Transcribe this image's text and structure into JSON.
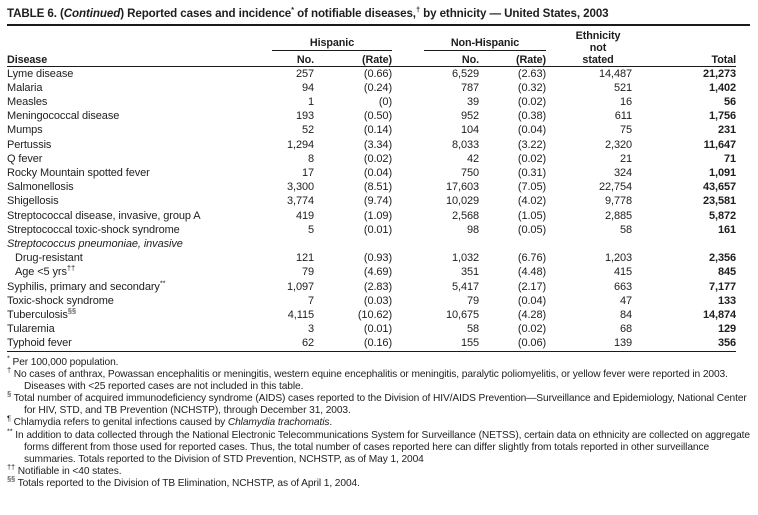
{
  "document": {
    "title": {
      "p1": "TABLE 6. (",
      "p2": "Continued",
      "p3": ") Reported cases and incidence",
      "sup1": "*",
      "p4": " of notifiable diseases,",
      "sup2": "†",
      "p5": " by ethnicity — United States, 2003"
    }
  },
  "table": {
    "headers": {
      "disease": "Disease",
      "hispanic_group": "Hispanic",
      "non_hispanic_group": "Non-Hispanic",
      "no": "No.",
      "rate": "(Rate)",
      "ethnicity_not_stated": "Ethnicity\nnot\nstated",
      "total": "Total"
    },
    "rows": [
      {
        "name": "Lyme disease",
        "values": [
          "257",
          "(0.66)",
          "6,529",
          "(2.63)",
          "14,487",
          "21,273"
        ]
      },
      {
        "name": "Malaria",
        "values": [
          "94",
          "(0.24)",
          "787",
          "(0.32)",
          "521",
          "1,402"
        ]
      },
      {
        "name": "Measles",
        "values": [
          "1",
          "(0)",
          "39",
          "(0.02)",
          "16",
          "56"
        ]
      },
      {
        "name": "Meningococcal disease",
        "values": [
          "193",
          "(0.50)",
          "952",
          "(0.38)",
          "611",
          "1,756"
        ]
      },
      {
        "name": "Mumps",
        "values": [
          "52",
          "(0.14)",
          "104",
          "(0.04)",
          "75",
          "231"
        ]
      },
      {
        "name": "Pertussis",
        "values": [
          "1,294",
          "(3.34)",
          "8,033",
          "(3.22)",
          "2,320",
          "11,647"
        ]
      },
      {
        "name": "Q fever",
        "values": [
          "8",
          "(0.02)",
          "42",
          "(0.02)",
          "21",
          "71"
        ]
      },
      {
        "name": "Rocky Mountain spotted fever",
        "values": [
          "17",
          "(0.04)",
          "750",
          "(0.31)",
          "324",
          "1,091"
        ]
      },
      {
        "name": "Salmonellosis",
        "values": [
          "3,300",
          "(8.51)",
          "17,603",
          "(7.05)",
          "22,754",
          "43,657"
        ]
      },
      {
        "name": "Shigellosis",
        "values": [
          "3,774",
          "(9.74)",
          "10,029",
          "(4.02)",
          "9,778",
          "23,581"
        ]
      },
      {
        "name": "Streptococcal disease, invasive, group A",
        "values": [
          "419",
          "(1.09)",
          "2,568",
          "(1.05)",
          "2,885",
          "5,872"
        ]
      },
      {
        "name": "Streptococcal toxic-shock syndrome",
        "values": [
          "5",
          "(0.01)",
          "98",
          "(0.05)",
          "58",
          "161"
        ]
      },
      {
        "name": "Streptococcus pneumoniae, invasive",
        "italic": true,
        "values": [
          "",
          "",
          "",
          "",
          "",
          ""
        ]
      },
      {
        "name": "Drug-resistant",
        "indent": true,
        "values": [
          "121",
          "(0.93)",
          "1,032",
          "(6.76)",
          "1,203",
          "2,356"
        ]
      },
      {
        "name": "Age <5 yrs",
        "sup": "††",
        "indent": true,
        "values": [
          "79",
          "(4.69)",
          "351",
          "(4.48)",
          "415",
          "845"
        ]
      },
      {
        "name": "Syphilis, primary and secondary",
        "sup": "**",
        "values": [
          "1,097",
          "(2.83)",
          "5,417",
          "(2.17)",
          "663",
          "7,177"
        ]
      },
      {
        "name": "Toxic-shock syndrome",
        "values": [
          "7",
          "(0.03)",
          "79",
          "(0.04)",
          "47",
          "133"
        ]
      },
      {
        "name": "Tuberculosis",
        "sup": "§§",
        "values": [
          "4,115",
          "(10.62)",
          "10,675",
          "(4.28)",
          "84",
          "14,874"
        ]
      },
      {
        "name": "Tularemia",
        "values": [
          "3",
          "(0.01)",
          "58",
          "(0.02)",
          "68",
          "129"
        ]
      },
      {
        "name": "Typhoid fever",
        "values": [
          "62",
          "(0.16)",
          "155",
          "(0.06)",
          "139",
          "356"
        ]
      }
    ]
  },
  "footnotes": [
    {
      "marker": "*",
      "segments": [
        {
          "text": "Per 100,000 population."
        }
      ]
    },
    {
      "marker": "†",
      "segments": [
        {
          "text": "No cases of anthrax, Powassan encephalitis or meningitis, western equine encephalitis or meningitis, paralytic poliomyelitis, or yellow fever were reported in 2003. Diseases with <25 reported cases are not included in this table."
        }
      ]
    },
    {
      "marker": "§",
      "segments": [
        {
          "text": "Total number of acquired immunodeficiency syndrome (AIDS) cases reported to the Division of HIV/AIDS Prevention—Surveillance and Epidemiology, National Center for HIV, STD, and TB Prevention (NCHSTP), through December 31, 2003."
        }
      ]
    },
    {
      "marker": "¶",
      "segments": [
        {
          "text": "Chlamydia refers to genital infections caused by "
        },
        {
          "text": "Chlamydia trachomatis",
          "italic": true
        },
        {
          "text": "."
        }
      ]
    },
    {
      "marker": "**",
      "segments": [
        {
          "text": "In addition to data collected through the National Electronic Telecommunications System for Surveillance (NETSS), certain data on ethnicity are collected on aggregate forms different from those used for reported cases. Thus, the total number of cases reported here can differ slightly from totals reported in other surveillance summaries. Totals reported to the Division of STD Prevention, NCHSTP, as of May 1, 2004"
        }
      ]
    },
    {
      "marker": "††",
      "segments": [
        {
          "text": "Notifiable in <40 states."
        }
      ]
    },
    {
      "marker": "§§",
      "segments": [
        {
          "text": "Totals reported to the Division of TB Elimination, NCHSTP, as of April 1, 2004."
        }
      ]
    }
  ],
  "colors": {
    "ink": "#1e1e1e",
    "rule": "#1a1a1a",
    "paper": "#ffffff"
  }
}
